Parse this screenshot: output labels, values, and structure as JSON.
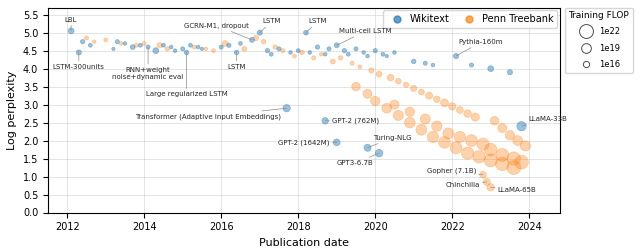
{
  "chart_data": {
    "type": "scatter",
    "x_label": "Publication date",
    "y_label": "Log perplexity",
    "xlim": [
      2011.5,
      2024.8
    ],
    "ylim": [
      0.0,
      5.7
    ],
    "xticks": [
      2012,
      2014,
      2016,
      2018,
      2020,
      2022,
      2024
    ],
    "yticks": [
      {
        "value": 0,
        "label": "0.0"
      },
      0.5,
      {
        "value": 1,
        "label": "1.0"
      },
      1.5,
      {
        "value": 2,
        "label": "2.0"
      },
      2.5,
      {
        "value": 3,
        "label": "3.0"
      },
      3.5,
      {
        "value": 4,
        "label": "4.0"
      },
      4.5,
      {
        "value": 5,
        "label": "5.0"
      },
      5.5
    ],
    "grid": true,
    "legend": "upper right",
    "series": [
      {
        "name": "Wikitext",
        "x": [
          2012.1,
          2012.4,
          2012.6,
          2012.3,
          2013.3,
          2013.5,
          2013.2,
          2013.7,
          2013.9,
          2014.1,
          2014.5,
          2014.7,
          2014.3,
          2014.8,
          2015.2,
          2015.4,
          2015.0,
          2015.5,
          2015.1,
          2016.2,
          2016.5,
          2016.0,
          2016.8,
          2017.0,
          2016.4,
          2017.2,
          2017.5,
          2017.3,
          2017.8,
          2018.2,
          2018.5,
          2018.0,
          2018.3,
          2018.8,
          2018.7,
          2019.0,
          2019.2,
          2019.5,
          2019.3,
          2019.7,
          2019.8,
          2020.0,
          2020.2,
          2020.5,
          2020.3,
          2021.0,
          2021.3,
          2021.5,
          2022.1,
          2022.5,
          2023.0,
          2023.5,
          2023.8,
          2017.7,
          2018.7,
          2019.0,
          2019.8,
          2020.1
        ],
        "values": [
          5.05,
          4.75,
          4.65,
          4.45,
          4.75,
          4.7,
          4.55,
          4.6,
          4.65,
          4.6,
          4.65,
          4.6,
          4.5,
          4.5,
          4.65,
          4.6,
          4.55,
          4.55,
          4.45,
          4.65,
          4.7,
          4.6,
          4.8,
          5.0,
          4.45,
          4.5,
          4.55,
          4.4,
          4.45,
          5.0,
          4.6,
          4.5,
          4.45,
          4.55,
          4.4,
          4.65,
          4.5,
          4.55,
          4.4,
          4.45,
          4.35,
          4.5,
          4.4,
          4.45,
          4.35,
          4.2,
          4.15,
          4.1,
          4.35,
          4.1,
          4.0,
          3.9,
          2.4,
          2.9,
          2.55,
          1.95,
          1.8,
          1.65
        ],
        "sizes": [
          18,
          10,
          8,
          14,
          9,
          7,
          6,
          12,
          8,
          9,
          8,
          7,
          18,
          7,
          8,
          7,
          9,
          6,
          11,
          10,
          8,
          9,
          13,
          14,
          11,
          10,
          9,
          8,
          7,
          12,
          10,
          8,
          7,
          9,
          7,
          13,
          10,
          9,
          8,
          7,
          7,
          10,
          8,
          7,
          6,
          11,
          9,
          7,
          15,
          9,
          18,
          14,
          45,
          28,
          22,
          24,
          26,
          30
        ]
      },
      {
        "name": "Penn Treebank",
        "x": [
          2012.5,
          2012.7,
          2013.0,
          2013.4,
          2013.8,
          2014.0,
          2014.4,
          2014.6,
          2015.3,
          2015.6,
          2015.8,
          2016.1,
          2016.6,
          2016.9,
          2017.1,
          2017.4,
          2017.6,
          2017.9,
          2018.1,
          2018.4,
          2018.6,
          2018.9,
          2019.1,
          2019.4,
          2019.6,
          2019.9,
          2020.1,
          2020.4,
          2020.6,
          2020.8,
          2021.0,
          2021.2,
          2021.4,
          2021.6,
          2021.8,
          2022.0,
          2022.2,
          2022.4,
          2022.6,
          2019.5,
          2019.8,
          2020.0,
          2020.3,
          2020.6,
          2020.9,
          2021.2,
          2021.5,
          2021.8,
          2022.1,
          2022.4,
          2022.7,
          2023.0,
          2023.3,
          2023.6,
          2020.5,
          2020.9,
          2021.3,
          2021.6,
          2021.9,
          2022.2,
          2022.5,
          2022.8,
          2023.0,
          2023.3,
          2023.6,
          2023.8,
          2022.8,
          2022.9,
          2023.0,
          2023.1,
          2023.3,
          2023.5,
          2023.7,
          2023.9
        ],
        "values": [
          4.85,
          4.75,
          4.8,
          4.7,
          4.65,
          4.7,
          4.65,
          4.55,
          4.6,
          4.55,
          4.5,
          4.7,
          4.55,
          4.85,
          4.75,
          4.6,
          4.5,
          4.35,
          4.45,
          4.3,
          4.4,
          4.2,
          4.3,
          4.15,
          4.05,
          3.95,
          3.85,
          3.75,
          3.65,
          3.55,
          3.45,
          3.35,
          3.25,
          3.15,
          3.05,
          2.95,
          2.85,
          2.75,
          2.65,
          3.5,
          3.3,
          3.1,
          2.9,
          2.7,
          2.5,
          2.3,
          2.1,
          1.95,
          1.8,
          1.65,
          1.55,
          1.45,
          1.35,
          1.25,
          3.0,
          2.8,
          2.6,
          2.4,
          2.2,
          2.1,
          2.0,
          1.9,
          1.75,
          1.6,
          1.5,
          1.4,
          1.05,
          0.85,
          0.7,
          2.55,
          2.35,
          2.15,
          2.0,
          1.85
        ],
        "sizes": [
          9,
          7,
          8,
          7,
          9,
          8,
          14,
          10,
          9,
          7,
          8,
          18,
          13,
          15,
          11,
          10,
          9,
          8,
          11,
          9,
          7,
          13,
          10,
          9,
          8,
          14,
          18,
          22,
          17,
          15,
          20,
          18,
          26,
          22,
          32,
          28,
          24,
          30,
          34,
          38,
          42,
          46,
          50,
          54,
          58,
          62,
          66,
          70,
          74,
          78,
          82,
          88,
          94,
          100,
          42,
          46,
          52,
          56,
          62,
          66,
          72,
          76,
          82,
          86,
          92,
          98,
          24,
          26,
          28,
          38,
          42,
          46,
          50,
          54
        ]
      }
    ],
    "annotations": [
      {
        "text": "LBL",
        "x": 2012.1,
        "y": 5.05
      },
      {
        "text": "LSTM-300units",
        "x": 2012.3,
        "y": 4.45
      },
      {
        "text": "RNN+weight\nnoise+dynamic eval",
        "x": 2014.1,
        "y": 4.6
      },
      {
        "text": "Large regularized LSTM",
        "x": 2015.1,
        "y": 4.45
      },
      {
        "text": "GCRN-M1, dropout",
        "x": 2016.8,
        "y": 4.8
      },
      {
        "text": "LSTM",
        "x": 2017.0,
        "y": 5.0
      },
      {
        "text": "LSTM",
        "x": 2016.4,
        "y": 4.45
      },
      {
        "text": "LSTM",
        "x": 2018.2,
        "y": 5.0
      },
      {
        "text": "Multi-cell LSTM",
        "x": 2019.0,
        "y": 4.65
      },
      {
        "text": "Transformer (Adaptive Input Embeddings)",
        "x": 2017.7,
        "y": 2.9
      },
      {
        "text": "GPT-2 (762M)",
        "x": 2018.7,
        "y": 2.55
      },
      {
        "text": "GPT-2 (1642M)",
        "x": 2019.0,
        "y": 1.95
      },
      {
        "text": "Turing-NLG",
        "x": 2019.8,
        "y": 1.8
      },
      {
        "text": "GPT3-6.7B",
        "x": 2020.1,
        "y": 1.65
      },
      {
        "text": "Pythia-160m",
        "x": 2022.1,
        "y": 4.35
      },
      {
        "text": "LLaMA-33B",
        "x": 2023.8,
        "y": 2.4
      },
      {
        "text": "Gopher (7.1B)",
        "x": 2022.8,
        "y": 1.05
      },
      {
        "text": "Chinchilla",
        "x": 2022.9,
        "y": 0.85
      },
      {
        "text": "LLaMA-65B",
        "x": 2023.0,
        "y": 0.7
      }
    ],
    "size_legend": {
      "title": "Training FLOP",
      "labels": [
        "1e22",
        "1e19",
        "1e16"
      ]
    }
  }
}
